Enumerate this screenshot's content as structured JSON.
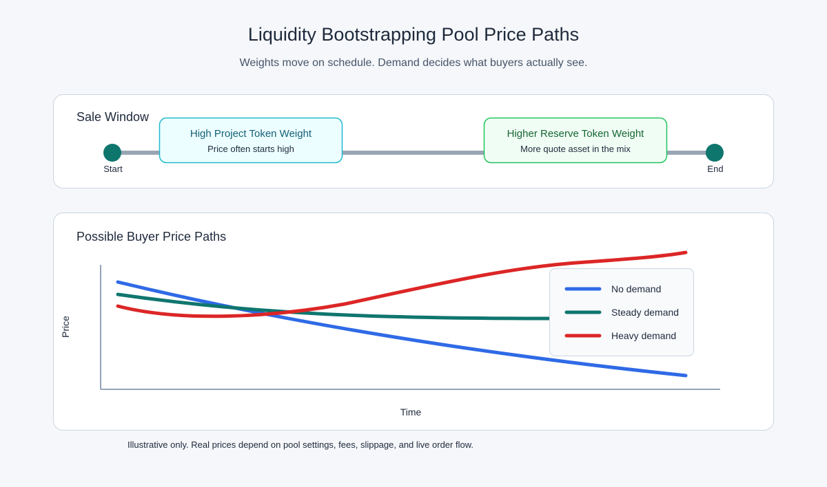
{
  "header": {
    "title": "Liquidity Bootstrapping Pool Price Paths",
    "subtitle": "Weights move on schedule. Demand decides what buyers actually see."
  },
  "timeline": {
    "title": "Sale Window",
    "start": "Start",
    "end": "End",
    "boxes": [
      {
        "title": "High Project Token Weight",
        "subtitle": "Price often starts high"
      },
      {
        "title": "Higher Reserve Token Weight",
        "subtitle": "More quote asset in the mix"
      }
    ]
  },
  "paths": {
    "title": "Possible Buyer Price Paths",
    "x_label": "Time",
    "y_label": "Price",
    "legend": [
      "No demand",
      "Steady demand",
      "Heavy demand"
    ]
  },
  "footnote": "Illustrative only. Real prices depend on pool settings, fees, slippage, and live order flow."
}
